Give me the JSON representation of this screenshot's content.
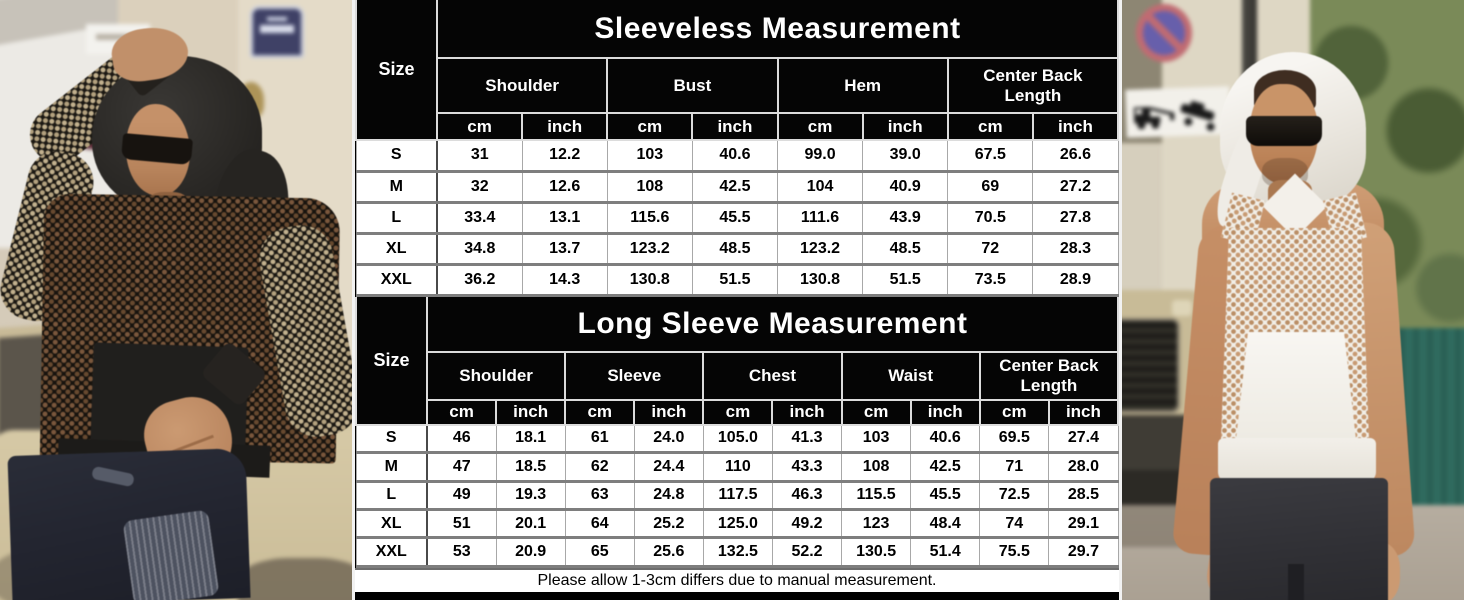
{
  "tables": [
    {
      "id": "sleeveless",
      "title": "Sleeveless Measurement",
      "size_label": "Size",
      "groups": [
        "Shoulder",
        "Bust",
        "Hem",
        "Center Back Length"
      ],
      "unit_labels": [
        "cm",
        "inch"
      ],
      "rows": [
        {
          "size": "S",
          "values": [
            "31",
            "12.2",
            "103",
            "40.6",
            "99.0",
            "39.0",
            "67.5",
            "26.6"
          ]
        },
        {
          "size": "M",
          "values": [
            "32",
            "12.6",
            "108",
            "42.5",
            "104",
            "40.9",
            "69",
            "27.2"
          ]
        },
        {
          "size": "L",
          "values": [
            "33.4",
            "13.1",
            "115.6",
            "45.5",
            "111.6",
            "43.9",
            "70.5",
            "27.8"
          ]
        },
        {
          "size": "XL",
          "values": [
            "34.8",
            "13.7",
            "123.2",
            "48.5",
            "123.2",
            "48.5",
            "72",
            "28.3"
          ]
        },
        {
          "size": "XXL",
          "values": [
            "36.2",
            "14.3",
            "130.8",
            "51.5",
            "130.8",
            "51.5",
            "73.5",
            "28.9"
          ]
        }
      ]
    },
    {
      "id": "long-sleeve",
      "title": "Long Sleeve Measurement",
      "size_label": "Size",
      "groups": [
        "Shoulder",
        "Sleeve",
        "Chest",
        "Waist",
        "Center Back Length"
      ],
      "unit_labels": [
        "cm",
        "inch"
      ],
      "rows": [
        {
          "size": "S",
          "values": [
            "46",
            "18.1",
            "61",
            "24.0",
            "105.0",
            "41.3",
            "103",
            "40.6",
            "69.5",
            "27.4"
          ]
        },
        {
          "size": "M",
          "values": [
            "47",
            "18.5",
            "62",
            "24.4",
            "110",
            "43.3",
            "108",
            "42.5",
            "71",
            "28.0"
          ]
        },
        {
          "size": "L",
          "values": [
            "49",
            "19.3",
            "63",
            "24.8",
            "117.5",
            "46.3",
            "115.5",
            "45.5",
            "72.5",
            "28.5"
          ]
        },
        {
          "size": "XL",
          "values": [
            "51",
            "20.1",
            "64",
            "25.2",
            "125.0",
            "49.2",
            "123",
            "48.4",
            "74",
            "29.1"
          ]
        },
        {
          "size": "XXL",
          "values": [
            "53",
            "20.9",
            "65",
            "25.6",
            "132.5",
            "52.2",
            "130.5",
            "51.4",
            "75.5",
            "29.7"
          ]
        }
      ]
    }
  ],
  "footer_note": "Please allow 1-3cm differs due to manual measurement.",
  "colors": {
    "table_header_bg": "#000000",
    "table_header_text": "#ffffff",
    "table_cell_bg": "#ffffff",
    "table_cell_text": "#000000",
    "no_parking_sign_blue": "#675fab",
    "no_parking_sign_red": "#c06b72",
    "street_plaque_blue": "#3f4166",
    "car_beige": "#cfc2a0"
  },
  "photos": {
    "left": {
      "description": "Man in black fishnet mesh long-sleeve hoodie, hand on hood, leaning on beige vintage car"
    },
    "right": {
      "description": "Man in white fishnet mesh sleeveless hoodie with hood up, street with no-parking and tow-away signs"
    }
  }
}
